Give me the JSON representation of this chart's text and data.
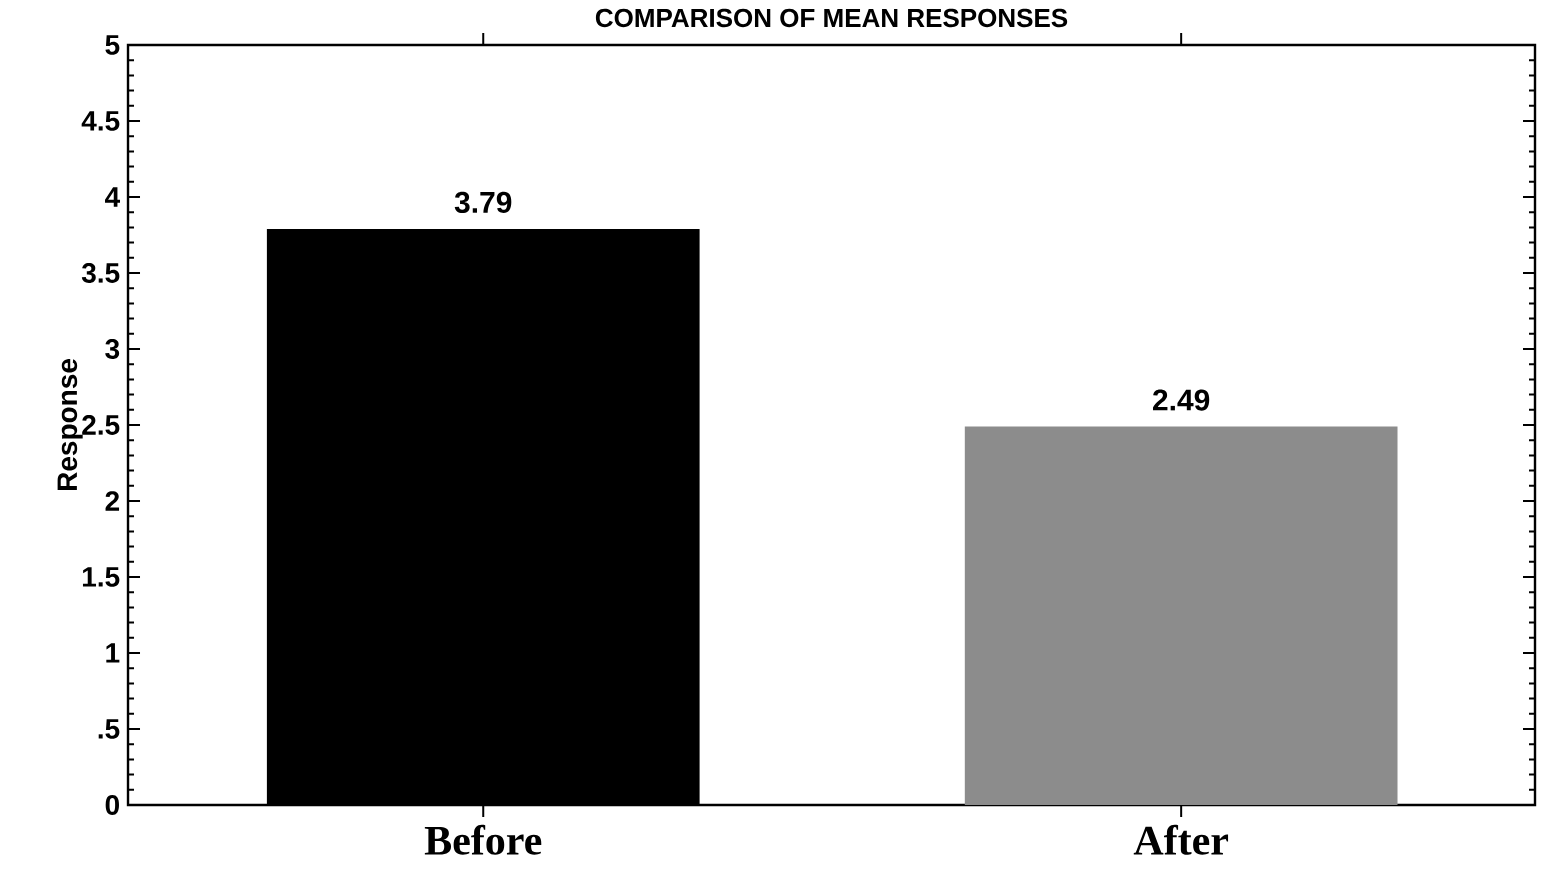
{
  "chart_data": {
    "type": "bar",
    "title": "COMPARISON OF MEAN RESPONSES",
    "ylabel": "Response",
    "categories": [
      "Before",
      "After"
    ],
    "values": [
      3.79,
      2.49
    ],
    "colors": [
      "#000000",
      "#8c8c8c"
    ],
    "ylim": [
      0,
      5
    ],
    "yticks": [
      0,
      {
        "value": 0.5,
        "label": ".5"
      },
      1,
      1.5,
      2,
      2.5,
      3,
      3.5,
      4,
      4.5,
      5
    ],
    "data_labels": true
  }
}
